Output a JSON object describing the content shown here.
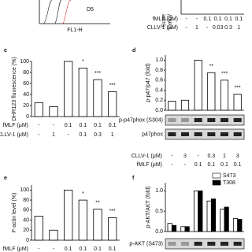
{
  "chart_data": [
    {
      "type": "flow",
      "annotations": [
        "D5",
        "FL1-H"
      ]
    },
    {
      "type": "conditions",
      "ylabel": "Supe",
      "ylabel_unit": "(nmol/",
      "rows": [
        {
          "label": "fMLF (μM)",
          "values": [
            "-",
            "-",
            "0.1",
            "0.1",
            "0.1",
            "0.1"
          ]
        },
        {
          "label": "CLLV-1 (μM)",
          "values": [
            "-",
            "1",
            "-",
            "0.03",
            "0.3",
            "1"
          ]
        }
      ]
    },
    {
      "type": "bar",
      "letter": "c",
      "ylabel": "DHR123 fluorescence (%)",
      "values": [
        25,
        18,
        100,
        88,
        67,
        45
      ],
      "sig": [
        null,
        null,
        null,
        "*",
        "***",
        "***"
      ],
      "ylim": [
        0,
        100
      ],
      "yticks": [
        0,
        20,
        40,
        60,
        80,
        100
      ],
      "rows": [
        {
          "label": "fMLF (μM)",
          "values": [
            "-",
            "-",
            "0.1",
            "0.1",
            "0.1",
            "0.1"
          ]
        },
        {
          "label": "CLLV-1 (μM)",
          "values": [
            "-",
            "1",
            "-",
            "0.1",
            "0.3",
            "1"
          ]
        }
      ]
    },
    {
      "type": "bar",
      "letter": "d",
      "ylabel": "p-p47/p47 (fold)",
      "values": [
        0.18,
        0.2,
        1.0,
        0.75,
        0.6,
        0.32
      ],
      "sig": [
        null,
        null,
        null,
        "**",
        "***",
        "***"
      ],
      "ylim": [
        0,
        1.1
      ],
      "yticks": [
        {
          "value": 0,
          "label": "0.0"
        },
        0.2,
        0.4,
        0.6,
        0.8,
        {
          "value": 1,
          "label": "1.0"
        }
      ],
      "blots": [
        "p-p47phox (S304)",
        "p47phox"
      ],
      "rows": [
        {
          "label": "CLLV-1 (μM)",
          "values": [
            "-",
            "3",
            "-",
            "0.3",
            "1",
            "3"
          ]
        },
        {
          "label": "fMLF (μM)",
          "values": [
            "-",
            "-",
            "0.1",
            "0.1",
            "0.1",
            "0.1"
          ]
        }
      ]
    },
    {
      "type": "bar",
      "letter": "e",
      "ylabel": "F-actin level (%)",
      "values": [
        48,
        20,
        100,
        80,
        62,
        45
      ],
      "sig": [
        null,
        null,
        null,
        "*",
        "**",
        "***"
      ],
      "ylim": [
        0,
        110
      ],
      "yticks": [
        0,
        20,
        40,
        60,
        80,
        100
      ],
      "rows": [
        {
          "label": "fMLF (μM)",
          "values": [
            "-",
            "-",
            "0.1",
            "0.1",
            "0.1",
            "0.1"
          ]
        }
      ]
    },
    {
      "type": "grouped",
      "letter": "f",
      "ylabel": "p-AKT/AKT (fold)",
      "series": [
        {
          "name": "S473",
          "color": "#ffffff",
          "values": [
            0.2,
            0.12,
            1.0,
            0.75,
            0.55,
            0.32
          ]
        },
        {
          "name": "T308",
          "color": "#000000",
          "values": [
            0.15,
            0.12,
            1.0,
            0.8,
            0.6,
            0.3
          ]
        }
      ],
      "ylim": [
        0,
        1.2
      ],
      "yticks": [
        {
          "value": 0,
          "label": "0.0"
        },
        0.5,
        {
          "value": 1,
          "label": "1.0"
        }
      ],
      "blots": [
        "p-AKT (S473)"
      ]
    }
  ]
}
